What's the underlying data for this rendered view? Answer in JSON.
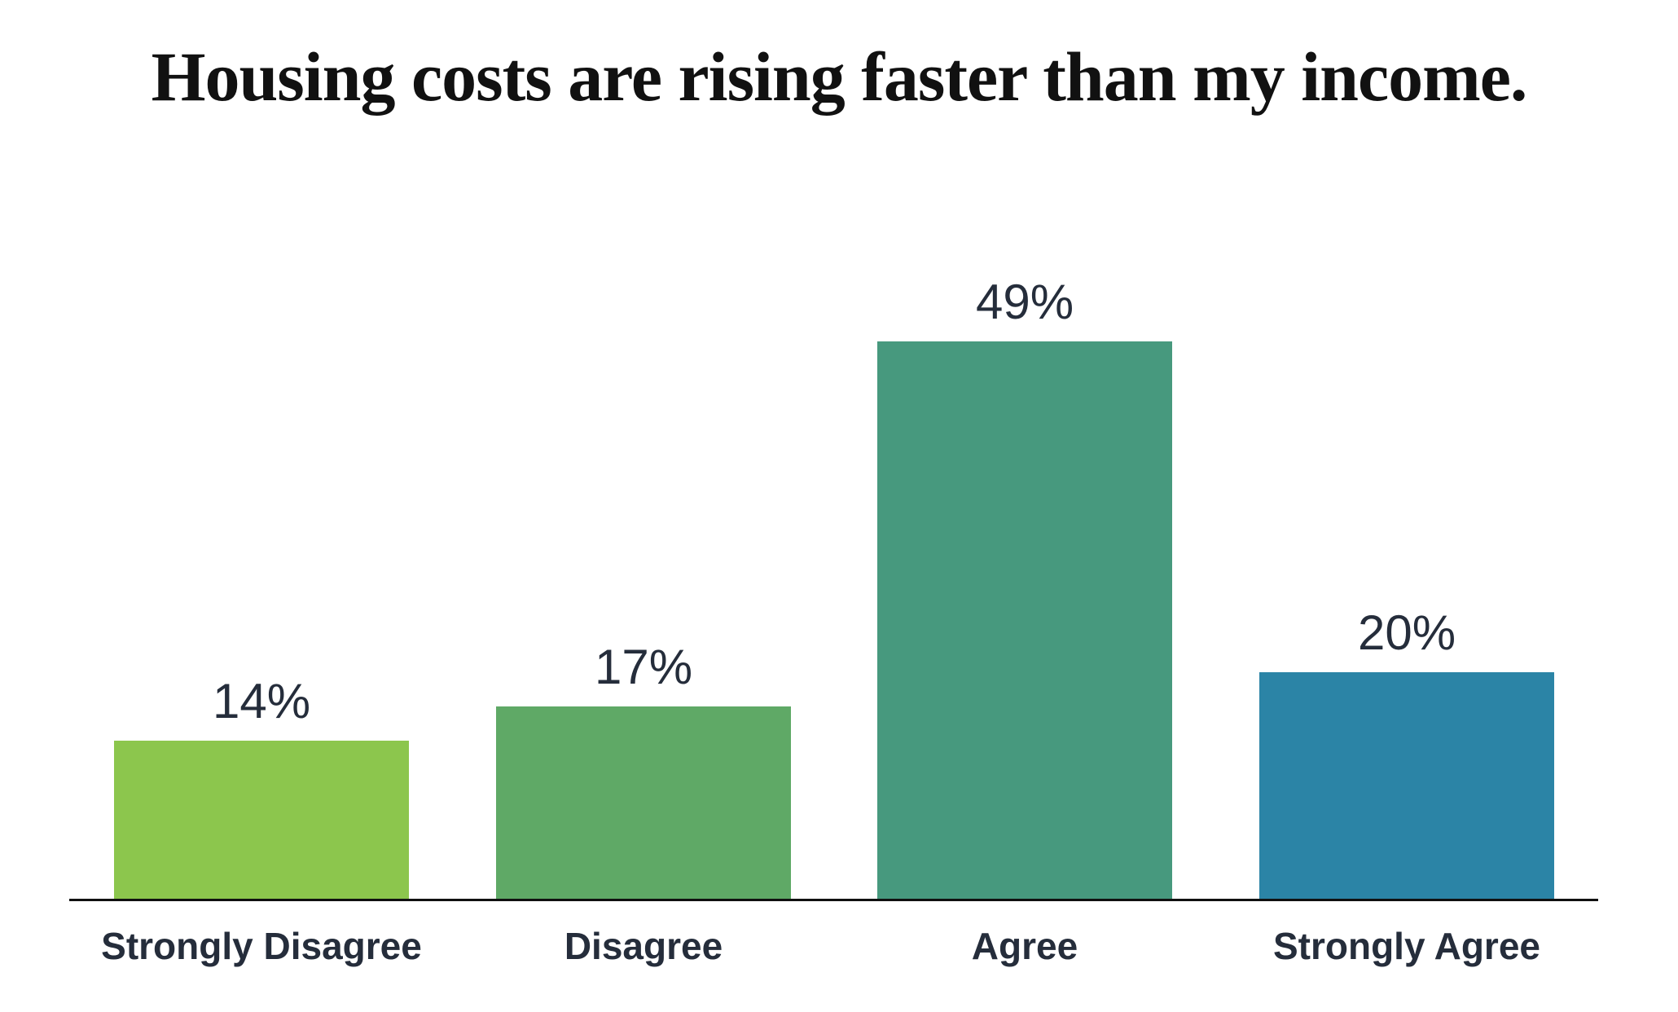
{
  "page": {
    "background_color": "#FFFFFF"
  },
  "chart_data": {
    "type": "bar",
    "title": "Housing costs are rising faster than my income.",
    "categories": [
      "Strongly Disagree",
      "Disagree",
      "Agree",
      "Strongly Agree"
    ],
    "values": [
      14,
      17,
      49,
      20
    ],
    "value_labels": [
      "14%",
      "17%",
      "49%",
      "20%"
    ],
    "bar_colors": [
      "#8CC64D",
      "#5FA966",
      "#47997E",
      "#2B84A6"
    ],
    "title_color": "#111111",
    "label_text_color": "#252D3B",
    "axis_color": "#101010",
    "xlabel": "",
    "ylabel": "",
    "ylim": [
      0,
      55
    ],
    "grid": false,
    "legend": "none",
    "value_label_position": "above-bar",
    "x_axis_line": true,
    "y_axis_ticks": "none"
  }
}
